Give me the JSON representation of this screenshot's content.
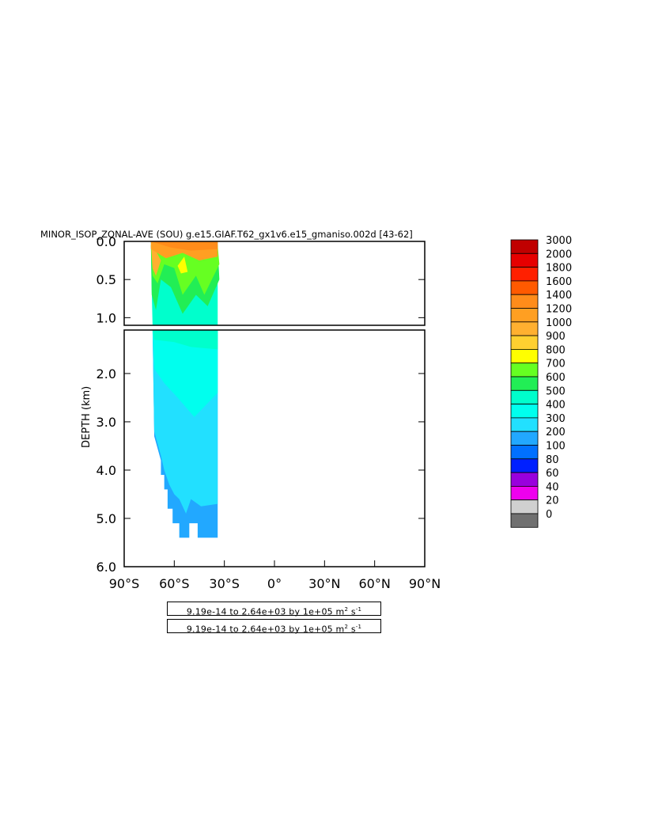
{
  "chart_data": {
    "type": "heatmap",
    "title": "MINOR_ISOP_ZONAL-AVE (SOU) g.e15.GIAF.T62_gx1v6.e15_gmaniso.002d [43-62]",
    "ylabel": "DEPTH (km)",
    "xlabel": "",
    "x_ticks": [
      "90°S",
      "60°S",
      "30°S",
      "0°",
      "30°N",
      "60°N",
      "90°N"
    ],
    "x_tick_values": [
      -90,
      -60,
      -30,
      0,
      30,
      60,
      90
    ],
    "xlim": [
      -90,
      90
    ],
    "upper_panel": {
      "ylim": [
        0.0,
        1.1
      ],
      "y_ticks": [
        "0.0",
        "0.5",
        "1.0"
      ],
      "y_tick_values": [
        0.0,
        0.5,
        1.0
      ]
    },
    "lower_panel": {
      "ylim": [
        1.1,
        6.0
      ],
      "y_ticks": [
        "2.0",
        "3.0",
        "4.0",
        "5.0",
        "6.0"
      ],
      "y_tick_values": [
        2.0,
        3.0,
        4.0,
        5.0,
        6.0
      ]
    },
    "colorbar": {
      "labels": [
        "3000",
        "2000",
        "1800",
        "1600",
        "1400",
        "1200",
        "1000",
        "900",
        "800",
        "700",
        "600",
        "500",
        "400",
        "300",
        "200",
        "100",
        "80",
        "60",
        "40",
        "20",
        "0"
      ],
      "colors": [
        "#c00000",
        "#e60000",
        "#ff2000",
        "#ff5a00",
        "#ff8c1a",
        "#ff9f22",
        "#ffb030",
        "#ffd030",
        "#ffff00",
        "#66ff22",
        "#22ee55",
        "#00ffcc",
        "#00ffee",
        "#22e0ff",
        "#22a8ff",
        "#0070ff",
        "#0020ff",
        "#9900dd",
        "#ee00ee",
        "#d0d0d0",
        "#707070"
      ]
    },
    "data_extent": {
      "lat_min": -74,
      "lat_max": -34,
      "max_depth_km": 5.4
    },
    "annotations": [
      "9.19e-14 to 2.64e+03 by 1e+05 m",
      "9.19e-14 to 2.64e+03 by 1e+05 m"
    ],
    "annotation_units": {
      "base": "m",
      "exp1": "2",
      "mid": "s",
      "exp2": "-1"
    }
  }
}
